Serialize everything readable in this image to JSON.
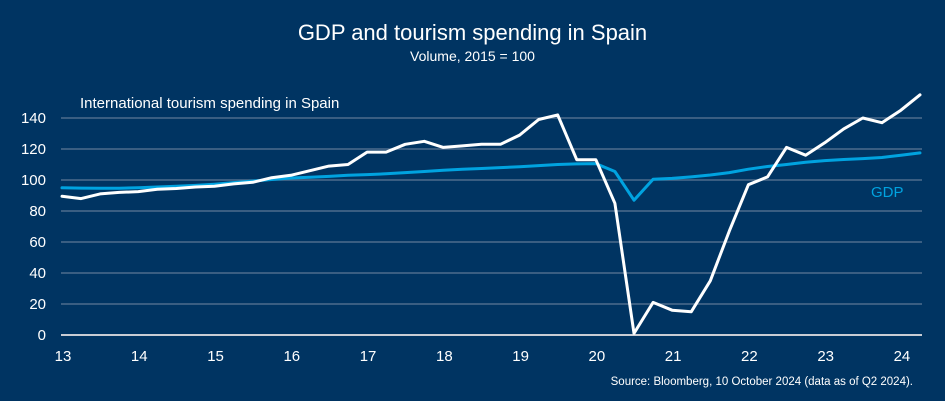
{
  "chart_data": {
    "type": "line",
    "title": "GDP and tourism spending in Spain",
    "subtitle": "Volume, 2015 = 100",
    "source": "Source: Bloomberg, 10 October 2024 (data as of Q2 2024).",
    "xlabel": "",
    "ylabel": "",
    "ylim": [
      0,
      140
    ],
    "yticks": [
      0,
      20,
      40,
      60,
      80,
      100,
      120,
      140
    ],
    "ytick_labels": [
      "0",
      "20",
      "40",
      "60",
      "80",
      "100",
      "120",
      "140"
    ],
    "xticks": [
      "13",
      "14",
      "15",
      "16",
      "17",
      "18",
      "19",
      "20",
      "21",
      "22",
      "23",
      "24"
    ],
    "x_start": "2013Q1",
    "x_end": "2024Q2",
    "frequency": "quarterly",
    "grid": true,
    "legend": "inline labels",
    "series": [
      {
        "name": "International tourism spending in Spain",
        "color": "#ffffff",
        "label_position": "top-left",
        "values": [
          89.5,
          88,
          91,
          92,
          92.5,
          94,
          94.5,
          95.5,
          96,
          97.5,
          98.5,
          101.5,
          103,
          106,
          109,
          110,
          118,
          118,
          123,
          125,
          121,
          122,
          123,
          123,
          129,
          139,
          142,
          113,
          113,
          85,
          1,
          21,
          16,
          15,
          35,
          67,
          97,
          102,
          121,
          116,
          124,
          133,
          140,
          137,
          145,
          155
        ]
      },
      {
        "name": "GDP",
        "color": "#00a3e0",
        "label_position": "right",
        "values": [
          95,
          94.8,
          94.7,
          94.7,
          95,
          95.5,
          96,
          96.5,
          97.3,
          98.3,
          99.3,
          100.3,
          101.3,
          101.8,
          102.3,
          103,
          103.5,
          104,
          104.8,
          105.5,
          106.3,
          106.9,
          107.4,
          108,
          108.5,
          109.3,
          110,
          110.4,
          110.6,
          105.5,
          87,
          100.5,
          101,
          102,
          103.2,
          104.8,
          107,
          108.7,
          110,
          111.5,
          112.5,
          113.2,
          113.8,
          114.5,
          116,
          117.5
        ]
      }
    ]
  }
}
